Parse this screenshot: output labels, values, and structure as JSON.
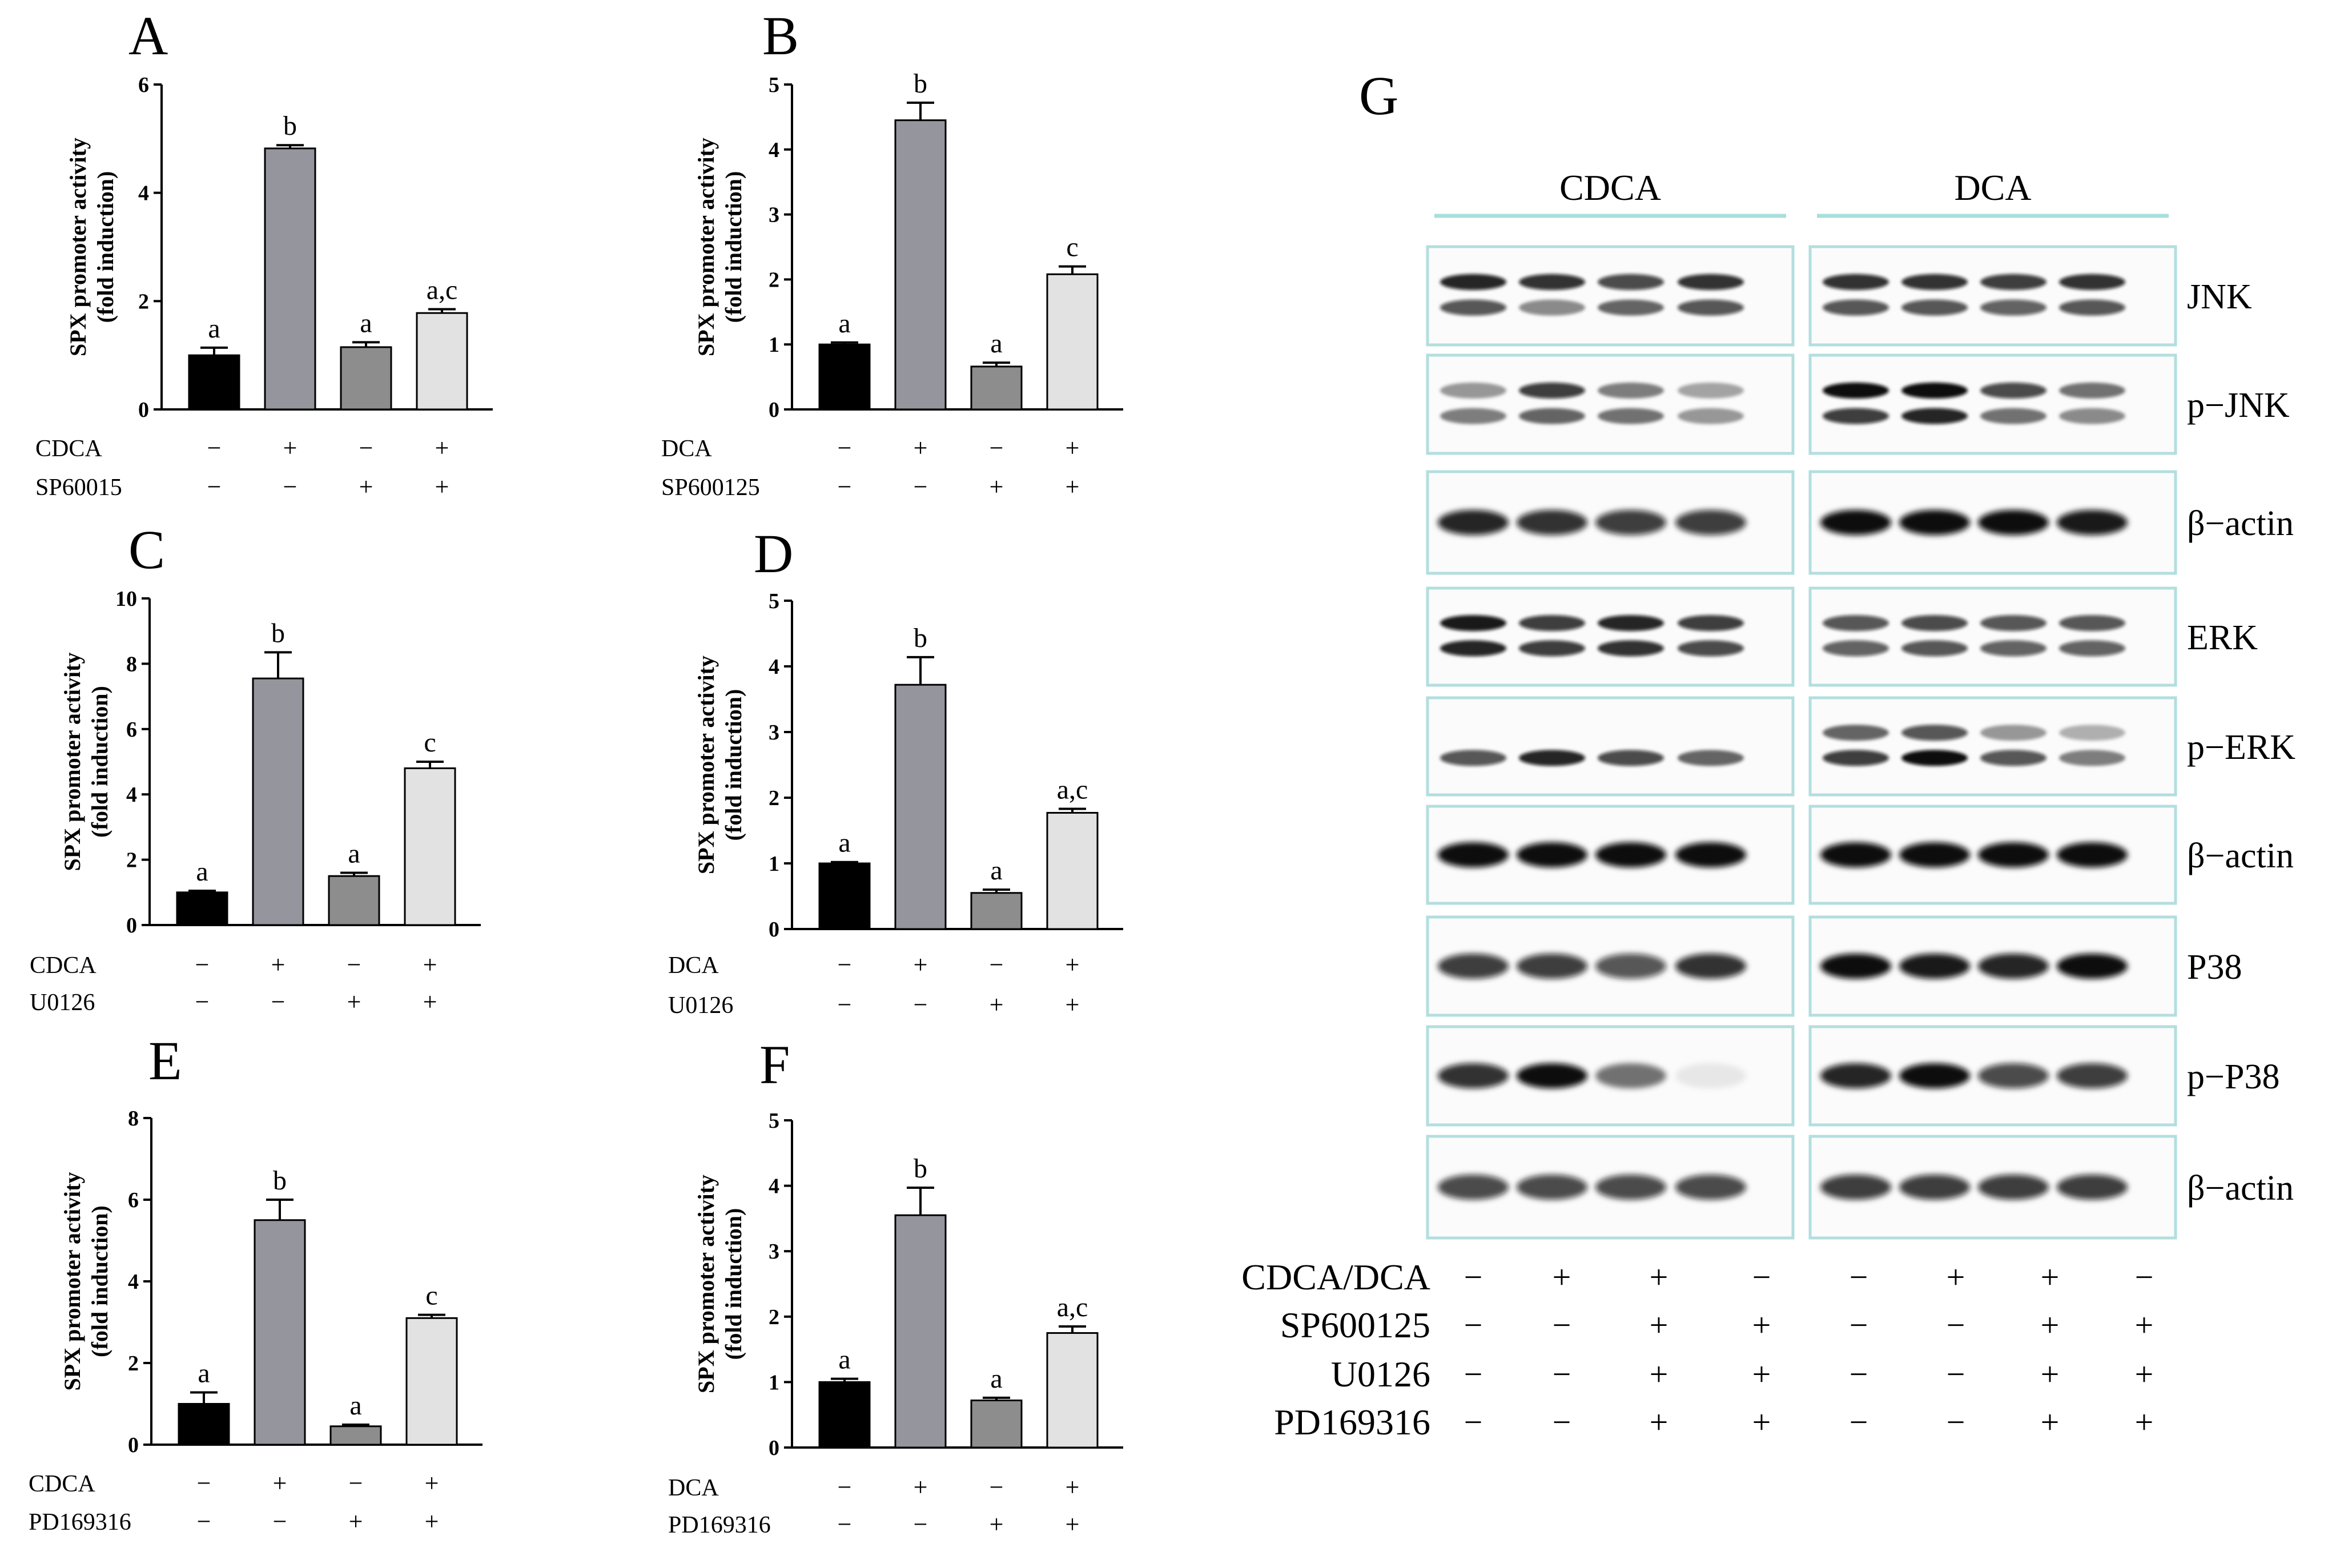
{
  "figure": {
    "panel_g": {
      "letter": "G",
      "groups": [
        "CDCA",
        "DCA"
      ],
      "lanes_per_group": 4,
      "blots": [
        {
          "label": "JNK",
          "pattern": "double",
          "intensity": [
            [
              0.9,
              0.7
            ],
            [
              0.85,
              0.45
            ],
            [
              0.75,
              0.6
            ],
            [
              0.85,
              0.7
            ],
            [
              0.85,
              0.7
            ],
            [
              0.85,
              0.7
            ],
            [
              0.8,
              0.65
            ],
            [
              0.85,
              0.7
            ]
          ]
        },
        {
          "label": "p−JNK",
          "pattern": "double",
          "intensity": [
            [
              0.4,
              0.5
            ],
            [
              0.8,
              0.6
            ],
            [
              0.5,
              0.55
            ],
            [
              0.35,
              0.4
            ],
            [
              1.0,
              0.8
            ],
            [
              1.0,
              0.9
            ],
            [
              0.75,
              0.55
            ],
            [
              0.55,
              0.45
            ]
          ]
        },
        {
          "label": "β−actin",
          "pattern": "single",
          "intensity": [
            [
              0.9
            ],
            [
              0.85
            ],
            [
              0.8
            ],
            [
              0.8
            ],
            [
              1.0
            ],
            [
              1.0
            ],
            [
              1.0
            ],
            [
              0.95
            ]
          ]
        },
        {
          "label": "ERK",
          "pattern": "double",
          "intensity": [
            [
              0.95,
              0.9
            ],
            [
              0.8,
              0.8
            ],
            [
              0.9,
              0.85
            ],
            [
              0.8,
              0.75
            ],
            [
              0.7,
              0.65
            ],
            [
              0.75,
              0.7
            ],
            [
              0.7,
              0.65
            ],
            [
              0.7,
              0.65
            ]
          ]
        },
        {
          "label": "p−ERK",
          "pattern": "double",
          "intensity": [
            [
              0.0,
              0.7
            ],
            [
              0.0,
              0.9
            ],
            [
              0.0,
              0.75
            ],
            [
              0.0,
              0.6
            ],
            [
              0.6,
              0.8
            ],
            [
              0.7,
              1.0
            ],
            [
              0.4,
              0.7
            ],
            [
              0.3,
              0.5
            ]
          ]
        },
        {
          "label": "β−actin",
          "pattern": "single",
          "intensity": [
            [
              1.0
            ],
            [
              1.0
            ],
            [
              1.0
            ],
            [
              1.0
            ],
            [
              1.0
            ],
            [
              1.0
            ],
            [
              1.0
            ],
            [
              1.0
            ]
          ]
        },
        {
          "label": "P38",
          "pattern": "single",
          "intensity": [
            [
              0.8
            ],
            [
              0.8
            ],
            [
              0.7
            ],
            [
              0.85
            ],
            [
              1.0
            ],
            [
              0.95
            ],
            [
              0.9
            ],
            [
              1.0
            ]
          ]
        },
        {
          "label": "p−P38",
          "pattern": "single",
          "intensity": [
            [
              0.85
            ],
            [
              1.0
            ],
            [
              0.55
            ],
            [
              0.08
            ],
            [
              0.9
            ],
            [
              1.0
            ],
            [
              0.75
            ],
            [
              0.8
            ]
          ]
        },
        {
          "label": "β−actin",
          "pattern": "single",
          "intensity": [
            [
              0.75
            ],
            [
              0.75
            ],
            [
              0.75
            ],
            [
              0.75
            ],
            [
              0.8
            ],
            [
              0.8
            ],
            [
              0.8
            ],
            [
              0.8
            ]
          ]
        }
      ],
      "treatments": [
        {
          "label": "CDCA/DCA",
          "signs": [
            "−",
            "+",
            "+",
            "−",
            "−",
            "+",
            "+",
            "−"
          ]
        },
        {
          "label": "SP600125",
          "signs": [
            "−",
            "−",
            "+",
            "+",
            "−",
            "−",
            "+",
            "+"
          ]
        },
        {
          "label": "U0126",
          "signs": [
            "−",
            "−",
            "+",
            "+",
            "−",
            "−",
            "+",
            "+"
          ]
        },
        {
          "label": "PD169316",
          "signs": [
            "−",
            "−",
            "+",
            "+",
            "−",
            "−",
            "+",
            "+"
          ]
        }
      ]
    }
  },
  "chart_data": [
    {
      "panel": "A",
      "type": "bar",
      "ylabel": [
        "SPX promoter activity",
        "(fold induction)"
      ],
      "ylim": [
        0,
        6
      ],
      "yticks": [
        0,
        2,
        4,
        6
      ],
      "values": [
        1.0,
        4.82,
        1.15,
        1.78
      ],
      "errors": [
        0.14,
        0.06,
        0.09,
        0.07
      ],
      "letters": [
        "a",
        "b",
        "a",
        "a,c"
      ],
      "colors": [
        "#000000",
        "#95959d",
        "#8d8d8d",
        "#e2e2e2"
      ],
      "treatments": [
        {
          "label": "CDCA",
          "signs": [
            "−",
            "+",
            "−",
            "+"
          ]
        },
        {
          "label": "SP60015",
          "signs": [
            "−",
            "−",
            "+",
            "+"
          ]
        }
      ]
    },
    {
      "panel": "B",
      "type": "bar",
      "ylabel": [
        "SPX promoter activity",
        "(fold induction)"
      ],
      "ylim": [
        0,
        5
      ],
      "yticks": [
        0,
        1,
        2,
        3,
        4,
        5
      ],
      "values": [
        1.0,
        4.45,
        0.66,
        2.08
      ],
      "errors": [
        0.03,
        0.27,
        0.06,
        0.12
      ],
      "letters": [
        "a",
        "b",
        "a",
        "c"
      ],
      "colors": [
        "#000000",
        "#95959d",
        "#8d8d8d",
        "#e2e2e2"
      ],
      "treatments": [
        {
          "label": "DCA",
          "signs": [
            "−",
            "+",
            "−",
            "+"
          ]
        },
        {
          "label": "SP600125",
          "signs": [
            "−",
            "−",
            "+",
            "+"
          ]
        }
      ]
    },
    {
      "panel": "C",
      "type": "bar",
      "ylabel": [
        "SPX promoter activity",
        "(fold induction)"
      ],
      "ylim": [
        0,
        10
      ],
      "yticks": [
        0,
        2,
        4,
        6,
        8,
        10
      ],
      "values": [
        1.0,
        7.55,
        1.5,
        4.8
      ],
      "errors": [
        0.05,
        0.8,
        0.1,
        0.2
      ],
      "letters": [
        "a",
        "b",
        "a",
        "c"
      ],
      "colors": [
        "#000000",
        "#95959d",
        "#8d8d8d",
        "#e2e2e2"
      ],
      "treatments": [
        {
          "label": "CDCA",
          "signs": [
            "−",
            "+",
            "−",
            "+"
          ]
        },
        {
          "label": "U0126",
          "signs": [
            "−",
            "−",
            "+",
            "+"
          ]
        }
      ]
    },
    {
      "panel": "D",
      "type": "bar",
      "ylabel": [
        "SPX promoter activity",
        "(fold induction)"
      ],
      "ylim": [
        0,
        5
      ],
      "yticks": [
        0,
        1,
        2,
        3,
        4,
        5
      ],
      "values": [
        1.0,
        3.72,
        0.55,
        1.77
      ],
      "errors": [
        0.02,
        0.42,
        0.05,
        0.06
      ],
      "letters": [
        "a",
        "b",
        "a",
        "a,c"
      ],
      "colors": [
        "#000000",
        "#95959d",
        "#8d8d8d",
        "#e2e2e2"
      ],
      "treatments": [
        {
          "label": "DCA",
          "signs": [
            "−",
            "+",
            "−",
            "+"
          ]
        },
        {
          "label": "U0126",
          "signs": [
            "−",
            "−",
            "+",
            "+"
          ]
        }
      ]
    },
    {
      "panel": "E",
      "type": "bar",
      "ylabel": [
        "SPX promoter activity",
        "(fold induction)"
      ],
      "ylim": [
        0,
        8
      ],
      "yticks": [
        0,
        2,
        4,
        6,
        8
      ],
      "values": [
        1.0,
        5.5,
        0.45,
        3.1
      ],
      "errors": [
        0.28,
        0.5,
        0.04,
        0.08
      ],
      "letters": [
        "a",
        "b",
        "a",
        "c"
      ],
      "colors": [
        "#000000",
        "#95959d",
        "#8d8d8d",
        "#e2e2e2"
      ],
      "treatments": [
        {
          "label": "CDCA",
          "signs": [
            "−",
            "+",
            "−",
            "+"
          ]
        },
        {
          "label": "PD169316",
          "signs": [
            "−",
            "−",
            "+",
            "+"
          ]
        }
      ]
    },
    {
      "panel": "F",
      "type": "bar",
      "ylabel": [
        "SPX promoter activity",
        "(fold induction)"
      ],
      "ylim": [
        0,
        5
      ],
      "yticks": [
        0,
        1,
        2,
        3,
        4,
        5
      ],
      "values": [
        1.0,
        3.55,
        0.72,
        1.75
      ],
      "errors": [
        0.05,
        0.42,
        0.04,
        0.1
      ],
      "letters": [
        "a",
        "b",
        "a",
        "a,c"
      ],
      "colors": [
        "#000000",
        "#95959d",
        "#8d8d8d",
        "#e2e2e2"
      ],
      "treatments": [
        {
          "label": "DCA",
          "signs": [
            "−",
            "+",
            "−",
            "+"
          ]
        },
        {
          "label": "PD169316",
          "signs": [
            "−",
            "−",
            "+",
            "+"
          ]
        }
      ]
    }
  ]
}
